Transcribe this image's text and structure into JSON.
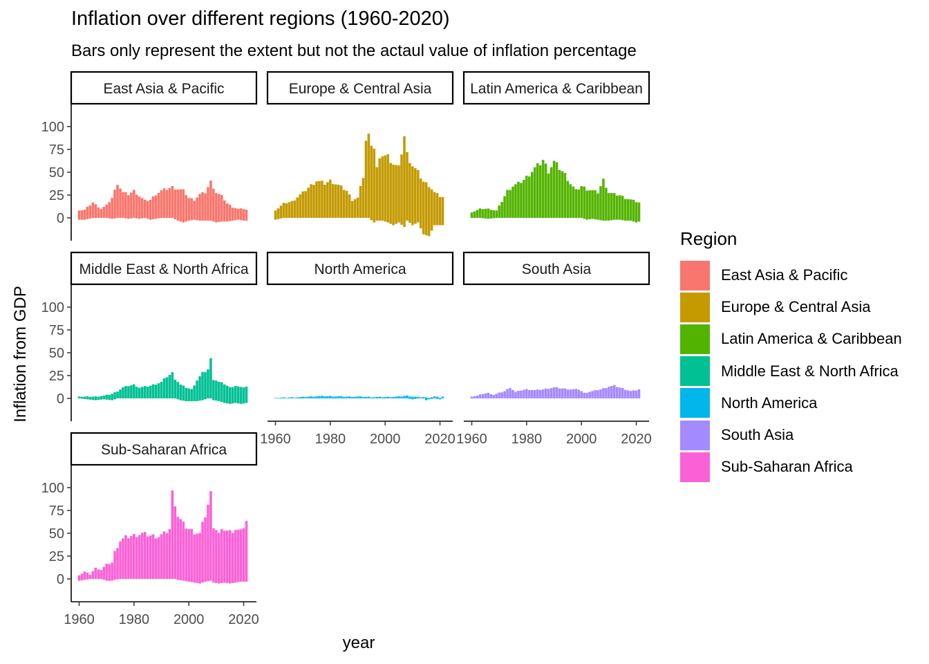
{
  "chart_data": {
    "type": "bar",
    "title": "Inflation over different regions (1960-2020)",
    "subtitle": "Bars only represent the extent but not the actaul value of inflation percentage",
    "xlabel": "year",
    "ylabel": "Inflation from GDP",
    "xlim": [
      1960,
      2021
    ],
    "ylim": [
      -25,
      125
    ],
    "x_ticks": [
      1960,
      1980,
      2000,
      2020
    ],
    "y_ticks": [
      0,
      25,
      50,
      75,
      100
    ],
    "grid": false,
    "legend_title": "Region",
    "legend_position": "right",
    "facets": [
      {
        "name": "East Asia & Pacific",
        "color": "#F8766D",
        "anchors": [
          [
            1960,
            -2,
            8
          ],
          [
            1962,
            -2,
            9
          ],
          [
            1965,
            0,
            17
          ],
          [
            1968,
            0,
            10
          ],
          [
            1970,
            0,
            14
          ],
          [
            1972,
            -1,
            22
          ],
          [
            1974,
            0,
            38
          ],
          [
            1976,
            0,
            28
          ],
          [
            1978,
            -1,
            26
          ],
          [
            1980,
            0,
            30
          ],
          [
            1982,
            -1,
            24
          ],
          [
            1984,
            0,
            19
          ],
          [
            1986,
            -2,
            20
          ],
          [
            1988,
            -1,
            26
          ],
          [
            1990,
            0,
            30
          ],
          [
            1992,
            0,
            32
          ],
          [
            1994,
            0,
            34
          ],
          [
            1996,
            -3,
            32
          ],
          [
            1998,
            -5,
            30
          ],
          [
            2000,
            -3,
            22
          ],
          [
            2002,
            -2,
            20
          ],
          [
            2004,
            -3,
            26
          ],
          [
            2006,
            -3,
            28
          ],
          [
            2008,
            -3,
            40
          ],
          [
            2010,
            -5,
            28
          ],
          [
            2012,
            -4,
            24
          ],
          [
            2014,
            -4,
            16
          ],
          [
            2016,
            -3,
            12
          ],
          [
            2018,
            -2,
            10
          ],
          [
            2020,
            -3,
            10
          ],
          [
            2021,
            -3,
            9
          ]
        ]
      },
      {
        "name": "Europe & Central Asia",
        "color": "#C49A00",
        "anchors": [
          [
            1960,
            -2,
            8
          ],
          [
            1963,
            0,
            16
          ],
          [
            1966,
            0,
            18
          ],
          [
            1970,
            0,
            28
          ],
          [
            1973,
            0,
            36
          ],
          [
            1975,
            0,
            41
          ],
          [
            1978,
            0,
            38
          ],
          [
            1980,
            0,
            41
          ],
          [
            1983,
            0,
            36
          ],
          [
            1986,
            0,
            30
          ],
          [
            1988,
            0,
            20
          ],
          [
            1990,
            0,
            22
          ],
          [
            1992,
            0,
            45
          ],
          [
            1993,
            0,
            85
          ],
          [
            1994,
            0,
            90
          ],
          [
            1996,
            -5,
            78
          ],
          [
            1997,
            -3,
            55
          ],
          [
            1999,
            -3,
            70
          ],
          [
            2001,
            -5,
            68
          ],
          [
            2003,
            -8,
            60
          ],
          [
            2005,
            -5,
            55
          ],
          [
            2007,
            -10,
            90
          ],
          [
            2008,
            -3,
            70
          ],
          [
            2010,
            -8,
            58
          ],
          [
            2012,
            -5,
            50
          ],
          [
            2014,
            -18,
            40
          ],
          [
            2016,
            -20,
            36
          ],
          [
            2018,
            -8,
            28
          ],
          [
            2020,
            -8,
            24
          ],
          [
            2021,
            -8,
            23
          ]
        ]
      },
      {
        "name": "Latin America & Caribbean",
        "color": "#53B400",
        "anchors": [
          [
            1960,
            0,
            6
          ],
          [
            1963,
            0,
            10
          ],
          [
            1966,
            -1,
            10
          ],
          [
            1969,
            0,
            8
          ],
          [
            1971,
            0,
            18
          ],
          [
            1973,
            0,
            30
          ],
          [
            1975,
            0,
            35
          ],
          [
            1977,
            0,
            38
          ],
          [
            1979,
            0,
            42
          ],
          [
            1981,
            0,
            48
          ],
          [
            1983,
            0,
            55
          ],
          [
            1985,
            0,
            60
          ],
          [
            1986,
            0,
            64
          ],
          [
            1988,
            0,
            52
          ],
          [
            1990,
            0,
            62
          ],
          [
            1992,
            0,
            55
          ],
          [
            1994,
            0,
            48
          ],
          [
            1996,
            0,
            38
          ],
          [
            1998,
            0,
            30
          ],
          [
            2000,
            0,
            35
          ],
          [
            2002,
            -2,
            32
          ],
          [
            2004,
            -1,
            30
          ],
          [
            2006,
            -2,
            28
          ],
          [
            2008,
            -3,
            42
          ],
          [
            2010,
            -3,
            28
          ],
          [
            2012,
            -2,
            26
          ],
          [
            2014,
            -2,
            25
          ],
          [
            2016,
            -3,
            22
          ],
          [
            2018,
            -3,
            20
          ],
          [
            2020,
            -5,
            18
          ],
          [
            2021,
            -4,
            17
          ]
        ]
      },
      {
        "name": "Middle East & North Africa",
        "color": "#00C094",
        "anchors": [
          [
            1960,
            0,
            2
          ],
          [
            1963,
            -1,
            2
          ],
          [
            1966,
            -2,
            2
          ],
          [
            1969,
            -1,
            3
          ],
          [
            1972,
            -2,
            5
          ],
          [
            1974,
            0,
            8
          ],
          [
            1976,
            0,
            12
          ],
          [
            1978,
            0,
            14
          ],
          [
            1980,
            0,
            15
          ],
          [
            1982,
            0,
            12
          ],
          [
            1984,
            0,
            13
          ],
          [
            1986,
            0,
            14
          ],
          [
            1988,
            0,
            16
          ],
          [
            1990,
            0,
            18
          ],
          [
            1992,
            0,
            24
          ],
          [
            1994,
            0,
            28
          ],
          [
            1995,
            0,
            22
          ],
          [
            1997,
            -2,
            15
          ],
          [
            1999,
            -3,
            12
          ],
          [
            2001,
            -3,
            10
          ],
          [
            2003,
            -3,
            20
          ],
          [
            2005,
            -2,
            28
          ],
          [
            2007,
            0,
            32
          ],
          [
            2008,
            0,
            43
          ],
          [
            2009,
            -2,
            22
          ],
          [
            2011,
            -3,
            18
          ],
          [
            2013,
            -5,
            16
          ],
          [
            2015,
            -6,
            12
          ],
          [
            2017,
            -5,
            14
          ],
          [
            2019,
            -6,
            12
          ],
          [
            2021,
            -5,
            13
          ]
        ]
      },
      {
        "name": "North America",
        "color": "#00B6EB",
        "anchors": [
          [
            1960,
            0,
            0.5
          ],
          [
            1965,
            0,
            1
          ],
          [
            1970,
            0,
            1.5
          ],
          [
            1975,
            0,
            2.5
          ],
          [
            1980,
            0,
            2.5
          ],
          [
            1985,
            0,
            2
          ],
          [
            1990,
            0,
            2
          ],
          [
            1995,
            0,
            1.5
          ],
          [
            2000,
            0,
            1.5
          ],
          [
            2005,
            0,
            2
          ],
          [
            2008,
            0,
            3
          ],
          [
            2010,
            -1,
            2
          ],
          [
            2012,
            0,
            1.5
          ],
          [
            2014,
            0,
            1.5
          ],
          [
            2015,
            -2,
            1
          ],
          [
            2016,
            -1,
            1
          ],
          [
            2018,
            0,
            2
          ],
          [
            2020,
            -1,
            1
          ],
          [
            2021,
            0,
            2
          ]
        ]
      },
      {
        "name": "South Asia",
        "color": "#A58AFF",
        "anchors": [
          [
            1960,
            0,
            2
          ],
          [
            1962,
            0,
            3
          ],
          [
            1964,
            0,
            5
          ],
          [
            1966,
            0,
            6
          ],
          [
            1968,
            0,
            4
          ],
          [
            1970,
            0,
            6
          ],
          [
            1972,
            0,
            8
          ],
          [
            1974,
            0,
            12
          ],
          [
            1976,
            0,
            7
          ],
          [
            1978,
            0,
            9
          ],
          [
            1980,
            0,
            10
          ],
          [
            1983,
            0,
            9
          ],
          [
            1986,
            0,
            10
          ],
          [
            1988,
            0,
            11
          ],
          [
            1990,
            0,
            12
          ],
          [
            1993,
            0,
            11
          ],
          [
            1996,
            0,
            10
          ],
          [
            1999,
            0,
            10
          ],
          [
            2001,
            0,
            6
          ],
          [
            2004,
            0,
            8
          ],
          [
            2007,
            0,
            10
          ],
          [
            2010,
            0,
            13
          ],
          [
            2012,
            0,
            14
          ],
          [
            2014,
            0,
            12
          ],
          [
            2016,
            0,
            10
          ],
          [
            2018,
            0,
            8
          ],
          [
            2020,
            0,
            9
          ],
          [
            2021,
            0,
            10
          ]
        ]
      },
      {
        "name": "Sub-Saharan Africa",
        "color": "#FB61D7",
        "anchors": [
          [
            1960,
            -2,
            4
          ],
          [
            1962,
            -1,
            8
          ],
          [
            1964,
            0,
            5
          ],
          [
            1966,
            0,
            12
          ],
          [
            1968,
            0,
            10
          ],
          [
            1970,
            -2,
            16
          ],
          [
            1972,
            -2,
            18
          ],
          [
            1973,
            -1,
            30
          ],
          [
            1975,
            0,
            42
          ],
          [
            1977,
            0,
            46
          ],
          [
            1980,
            0,
            48
          ],
          [
            1983,
            0,
            50
          ],
          [
            1986,
            0,
            48
          ],
          [
            1989,
            0,
            47
          ],
          [
            1991,
            0,
            50
          ],
          [
            1993,
            0,
            55
          ],
          [
            1994,
            0,
            95
          ],
          [
            1995,
            0,
            85
          ],
          [
            1996,
            -1,
            70
          ],
          [
            1998,
            -2,
            60
          ],
          [
            2000,
            -3,
            55
          ],
          [
            2002,
            -4,
            52
          ],
          [
            2004,
            -5,
            50
          ],
          [
            2006,
            -3,
            70
          ],
          [
            2008,
            -2,
            94
          ],
          [
            2009,
            -4,
            60
          ],
          [
            2011,
            -5,
            50
          ],
          [
            2013,
            -4,
            55
          ],
          [
            2015,
            -5,
            52
          ],
          [
            2017,
            -4,
            55
          ],
          [
            2019,
            -3,
            52
          ],
          [
            2021,
            -3,
            64
          ]
        ]
      }
    ]
  }
}
